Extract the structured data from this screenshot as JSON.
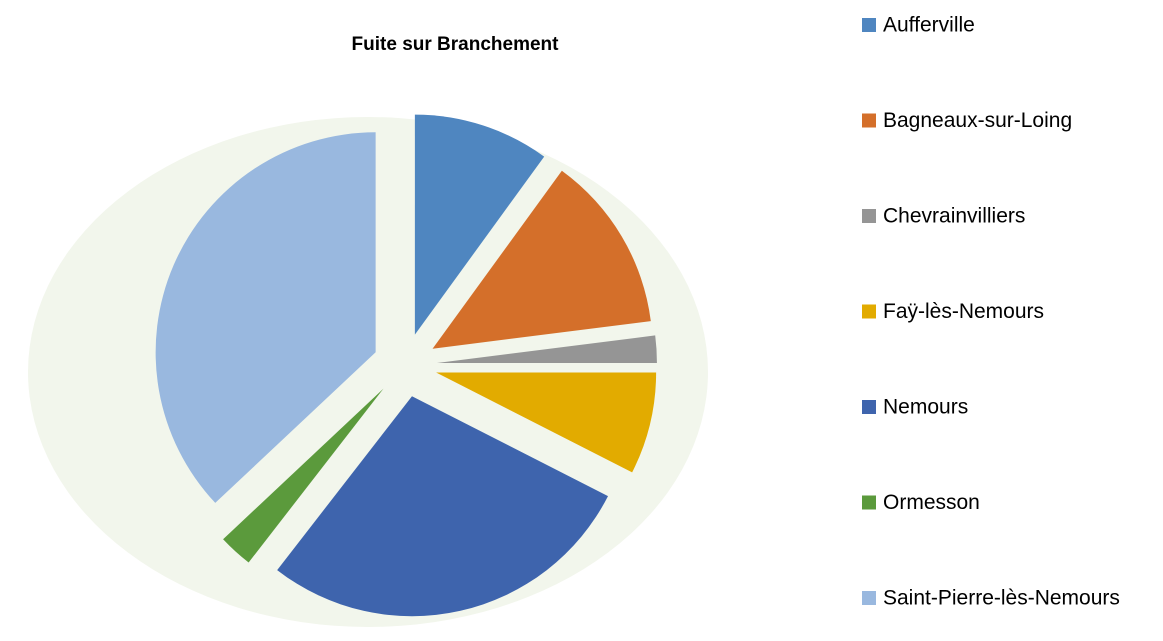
{
  "chart_data": {
    "type": "pie",
    "title": "Fuite sur Branchement",
    "categories": [
      "Aufferville",
      "Bagneaux-sur-Loing",
      "Chevrainvilliers",
      "Faÿ-lès-Nemours",
      "Nemours",
      "Ormesson",
      "Saint-Pierre-lès-Nemours"
    ],
    "values": [
      10,
      13,
      2,
      7.5,
      28,
      2.5,
      37
    ],
    "colors": [
      "#4f86c0",
      "#d46f2a",
      "#959595",
      "#e2ab00",
      "#3e64ad",
      "#5b9a3c",
      "#99b8df"
    ],
    "legend": "right"
  }
}
